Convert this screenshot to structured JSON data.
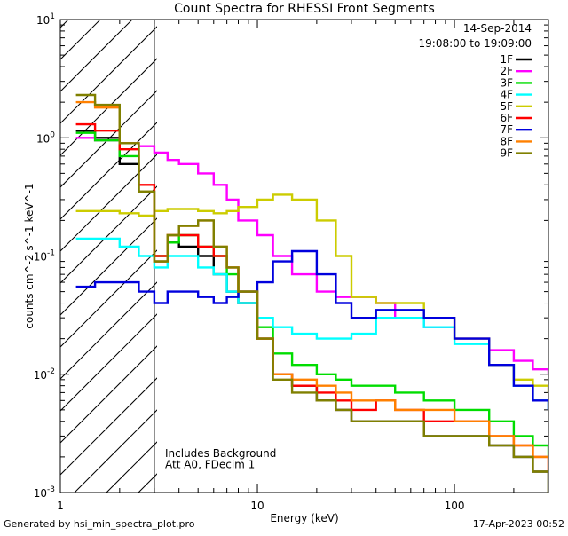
{
  "chart_data": {
    "type": "line",
    "title": "Count Spectra for RHESSI Front Segments",
    "xlabel": "Energy (keV)",
    "ylabel": "counts cm^-2 s^-1 keV^-1",
    "xscale": "log",
    "yscale": "log",
    "xlim": [
      1,
      300
    ],
    "ylim": [
      0.001,
      10
    ],
    "x_tick_labels": [
      {
        "value": 1,
        "label": "1"
      },
      {
        "value": 10,
        "label": "10"
      },
      {
        "value": 100,
        "label": "100"
      }
    ],
    "y_tick_labels": [
      {
        "value": 0.001,
        "mant": "10",
        "exp": "-3"
      },
      {
        "value": 0.01,
        "mant": "10",
        "exp": "-2"
      },
      {
        "value": 0.1,
        "mant": "10",
        "exp": "-1"
      },
      {
        "value": 1,
        "mant": "10",
        "exp": "0"
      },
      {
        "value": 10,
        "mant": "10",
        "exp": "1"
      }
    ],
    "date": "14-Sep-2014",
    "time_range": "19:08:00 to 19:09:00",
    "hatched_region_x": [
      1,
      3
    ],
    "annotations": [
      "Includes Background",
      "Att A0, FDecim 1"
    ],
    "series": [
      {
        "name": "1F",
        "color": "#000000",
        "x": [
          1.2,
          1.5,
          2.0,
          2.5,
          3.0,
          3.5,
          4.0,
          5.0,
          6.0,
          7.0,
          8.0,
          10.0,
          12.0,
          15.0,
          20.0,
          25.0,
          30.0,
          40.0,
          50.0,
          70.0,
          100.0,
          150.0,
          200.0,
          250.0,
          300.0
        ],
        "y": [
          1.15,
          1.0,
          0.6,
          0.35,
          0.09,
          0.13,
          0.12,
          0.1,
          0.07,
          0.05,
          0.04,
          0.02,
          0.01,
          0.008,
          0.006,
          0.005,
          0.004,
          0.004,
          0.004,
          0.003,
          0.003,
          0.0025,
          0.002,
          0.0015,
          0.001
        ]
      },
      {
        "name": "2F",
        "color": "#ff00ff",
        "x": [
          1.2,
          1.5,
          2.0,
          2.5,
          3.0,
          3.5,
          4.0,
          5.0,
          6.0,
          7.0,
          8.0,
          10.0,
          12.0,
          15.0,
          20.0,
          25.0,
          30.0,
          40.0,
          50.0,
          70.0,
          100.0,
          150.0,
          200.0,
          250.0,
          300.0
        ],
        "y": [
          1.0,
          0.95,
          0.9,
          0.85,
          0.75,
          0.65,
          0.6,
          0.5,
          0.4,
          0.3,
          0.2,
          0.15,
          0.1,
          0.07,
          0.05,
          0.045,
          0.045,
          0.04,
          0.03,
          0.025,
          0.02,
          0.016,
          0.013,
          0.011,
          0.01
        ]
      },
      {
        "name": "3F",
        "color": "#00dd00",
        "x": [
          1.2,
          1.5,
          2.0,
          2.5,
          3.0,
          3.5,
          4.0,
          5.0,
          6.0,
          7.0,
          8.0,
          10.0,
          12.0,
          15.0,
          20.0,
          25.0,
          30.0,
          40.0,
          50.0,
          70.0,
          100.0,
          150.0,
          200.0,
          250.0,
          300.0
        ],
        "y": [
          1.1,
          0.95,
          0.7,
          0.35,
          0.1,
          0.13,
          0.15,
          0.12,
          0.1,
          0.07,
          0.05,
          0.025,
          0.015,
          0.012,
          0.01,
          0.009,
          0.008,
          0.008,
          0.007,
          0.006,
          0.005,
          0.004,
          0.003,
          0.0025,
          0.002
        ]
      },
      {
        "name": "4F",
        "color": "#00ffff",
        "x": [
          1.2,
          1.5,
          2.0,
          2.5,
          3.0,
          3.5,
          4.0,
          5.0,
          6.0,
          7.0,
          8.0,
          10.0,
          12.0,
          15.0,
          20.0,
          25.0,
          30.0,
          40.0,
          50.0,
          70.0,
          100.0,
          150.0,
          200.0,
          250.0,
          300.0
        ],
        "y": [
          0.14,
          0.14,
          0.12,
          0.1,
          0.08,
          0.1,
          0.1,
          0.08,
          0.07,
          0.05,
          0.04,
          0.03,
          0.025,
          0.022,
          0.02,
          0.02,
          0.022,
          0.03,
          0.03,
          0.025,
          0.018,
          0.012,
          0.008,
          0.006,
          0.005
        ]
      },
      {
        "name": "5F",
        "color": "#cccc00",
        "x": [
          1.2,
          1.5,
          2.0,
          2.5,
          3.0,
          3.5,
          4.0,
          5.0,
          6.0,
          7.0,
          8.0,
          10.0,
          12.0,
          15.0,
          20.0,
          25.0,
          30.0,
          40.0,
          50.0,
          70.0,
          100.0,
          150.0,
          200.0,
          250.0,
          300.0
        ],
        "y": [
          0.24,
          0.24,
          0.23,
          0.22,
          0.24,
          0.25,
          0.25,
          0.24,
          0.23,
          0.24,
          0.26,
          0.3,
          0.33,
          0.3,
          0.2,
          0.1,
          0.045,
          0.04,
          0.04,
          0.03,
          0.02,
          0.012,
          0.009,
          0.008,
          0.007
        ]
      },
      {
        "name": "6F",
        "color": "#ff0000",
        "x": [
          1.2,
          1.5,
          2.0,
          2.5,
          3.0,
          3.5,
          4.0,
          5.0,
          6.0,
          7.0,
          8.0,
          10.0,
          12.0,
          15.0,
          20.0,
          25.0,
          30.0,
          40.0,
          50.0,
          70.0,
          100.0,
          150.0,
          200.0,
          250.0,
          300.0
        ],
        "y": [
          1.3,
          1.15,
          0.8,
          0.4,
          0.1,
          0.15,
          0.15,
          0.12,
          0.1,
          0.08,
          0.05,
          0.02,
          0.01,
          0.008,
          0.007,
          0.006,
          0.005,
          0.006,
          0.005,
          0.004,
          0.004,
          0.003,
          0.0025,
          0.002,
          0.0015
        ]
      },
      {
        "name": "7F",
        "color": "#0000dd",
        "x": [
          1.2,
          1.5,
          2.0,
          2.5,
          3.0,
          3.5,
          4.0,
          5.0,
          6.0,
          7.0,
          8.0,
          10.0,
          12.0,
          15.0,
          20.0,
          25.0,
          30.0,
          40.0,
          50.0,
          70.0,
          100.0,
          150.0,
          200.0,
          250.0,
          300.0
        ],
        "y": [
          0.055,
          0.06,
          0.06,
          0.05,
          0.04,
          0.05,
          0.05,
          0.045,
          0.04,
          0.045,
          0.05,
          0.06,
          0.09,
          0.11,
          0.07,
          0.04,
          0.03,
          0.035,
          0.035,
          0.03,
          0.02,
          0.012,
          0.008,
          0.006,
          0.005
        ]
      },
      {
        "name": "8F",
        "color": "#ff8000",
        "x": [
          1.2,
          1.5,
          2.0,
          2.5,
          3.0,
          3.5,
          4.0,
          5.0,
          6.0,
          7.0,
          8.0,
          10.0,
          12.0,
          15.0,
          20.0,
          25.0,
          30.0,
          40.0,
          50.0,
          70.0,
          100.0,
          150.0,
          200.0,
          250.0,
          300.0
        ],
        "y": [
          2.0,
          1.8,
          0.9,
          0.35,
          0.09,
          0.15,
          0.18,
          0.2,
          0.12,
          0.08,
          0.05,
          0.02,
          0.01,
          0.009,
          0.008,
          0.007,
          0.006,
          0.006,
          0.005,
          0.005,
          0.004,
          0.003,
          0.0025,
          0.002,
          0.0015
        ]
      },
      {
        "name": "9F",
        "color": "#808000",
        "x": [
          1.2,
          1.5,
          2.0,
          2.5,
          3.0,
          3.5,
          4.0,
          5.0,
          6.0,
          7.0,
          8.0,
          10.0,
          12.0,
          15.0,
          20.0,
          25.0,
          30.0,
          40.0,
          50.0,
          70.0,
          100.0,
          150.0,
          200.0,
          250.0,
          300.0
        ],
        "y": [
          2.3,
          1.9,
          0.9,
          0.35,
          0.09,
          0.15,
          0.18,
          0.2,
          0.12,
          0.08,
          0.05,
          0.02,
          0.009,
          0.007,
          0.006,
          0.005,
          0.004,
          0.004,
          0.004,
          0.003,
          0.003,
          0.0025,
          0.002,
          0.0015,
          0.001
        ]
      }
    ]
  },
  "footer": {
    "generated_by": "Generated by hsi_min_spectra_plot.pro",
    "timestamp": "17-Apr-2023 00:52"
  }
}
